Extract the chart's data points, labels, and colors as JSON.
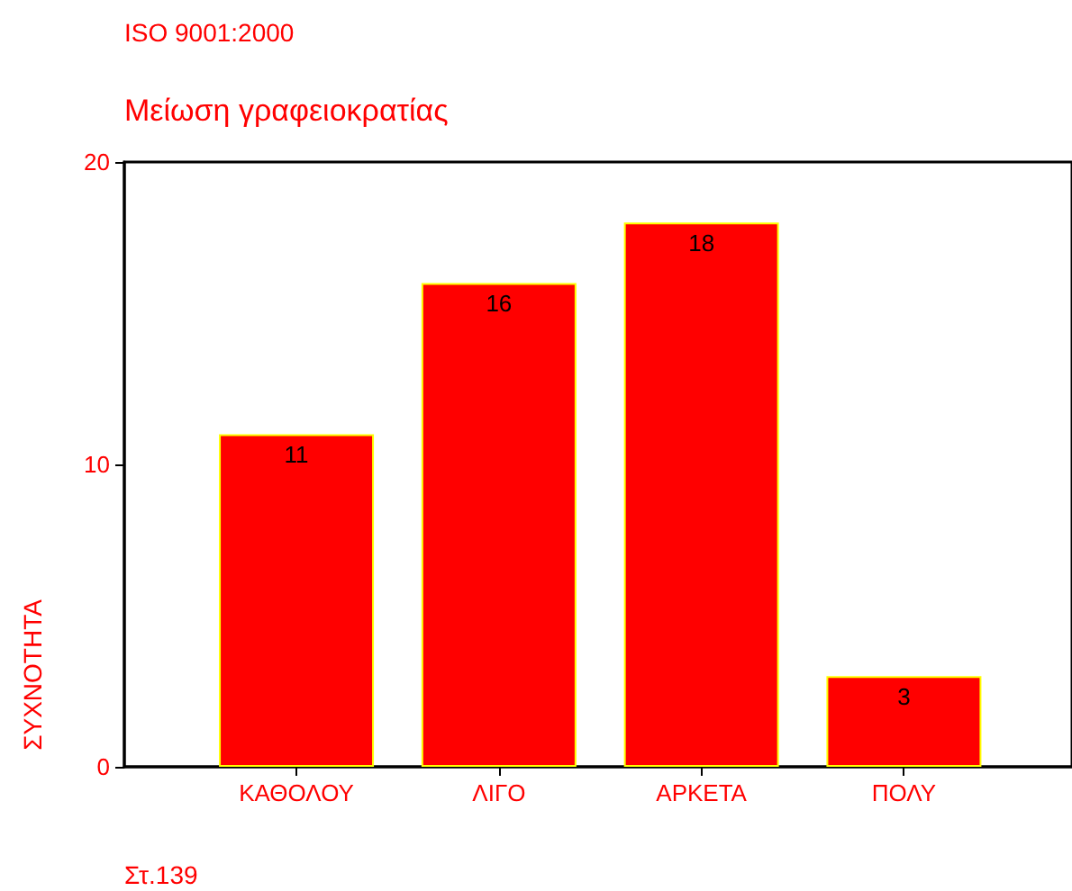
{
  "chart_data": {
    "type": "bar",
    "title": "ISO 9001:2000",
    "subtitle": "Μείωση γραφειοκρατίας",
    "ylabel": "ΣΥΧΝΟΤΗΤΑ",
    "annotations": [
      "Στ.139"
    ],
    "categories": [
      "ΚΑΘΟΛΟΥ",
      "ΛΙΓΟ",
      "ΑΡΚΕΤΑ",
      "ΠΟΛΥ"
    ],
    "values": [
      11,
      16,
      18,
      3
    ],
    "color": "#ff0000",
    "ylim": [
      0,
      20
    ],
    "yticks": [
      0,
      10,
      20
    ],
    "grid": false,
    "data_labels": true
  }
}
